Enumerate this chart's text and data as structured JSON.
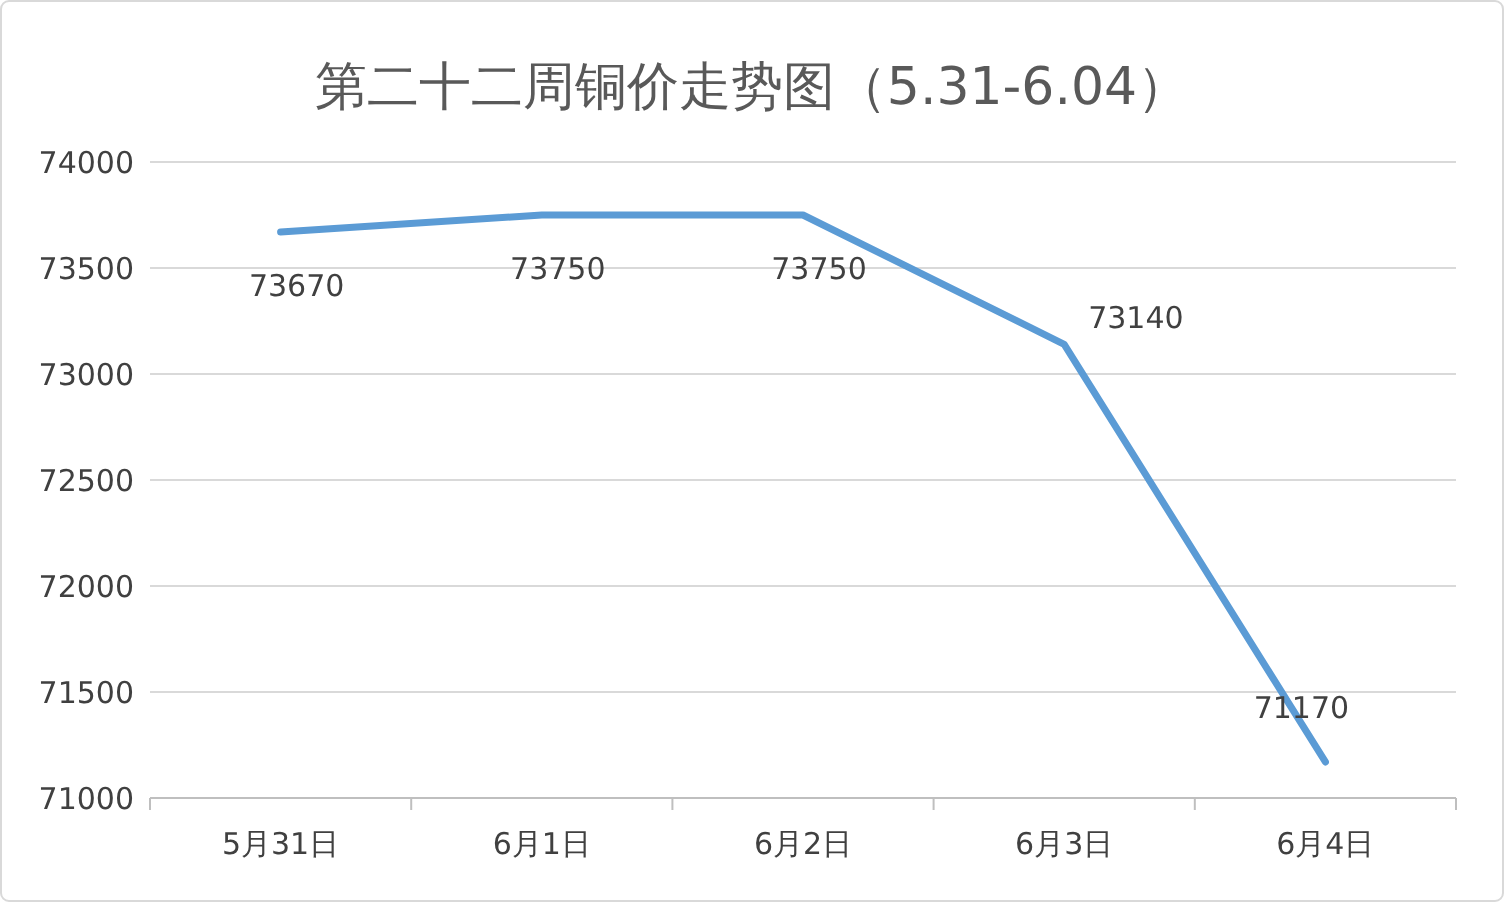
{
  "chart_data": {
    "type": "line",
    "title": "第二十二周铜价走势图（5.31-6.04）",
    "categories": [
      "5月31日",
      "6月1日",
      "6月2日",
      "6月3日",
      "6月4日"
    ],
    "series": [
      {
        "color": "#5b9bd5",
        "values": [
          73670,
          73750,
          73750,
          73140,
          71170
        ]
      }
    ],
    "ylim": [
      71000,
      74000
    ],
    "yticks": [
      71000,
      71500,
      72000,
      72500,
      73000,
      73500,
      74000
    ],
    "grid": "y",
    "data_labels": true,
    "marker": "none",
    "line_style": "solid"
  }
}
